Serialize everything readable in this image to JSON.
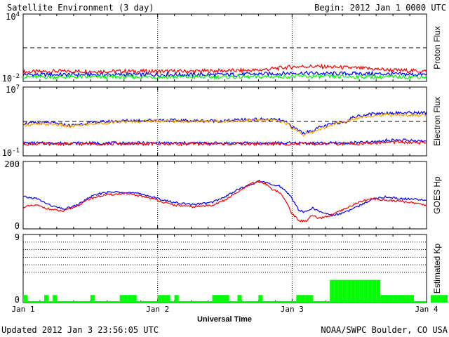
{
  "header": {
    "title": "Satellite Environment (3 day)",
    "begin": "Begin:  2012 Jan 1 0000 UTC"
  },
  "footer": {
    "updated": "Updated 2012 Jan  3 23:56:05 UTC",
    "source": "NOAA/SWPC Boulder, CO USA",
    "xlabel": "Universal Time"
  },
  "x_axis": {
    "range_days": [
      0,
      3
    ],
    "ticks": [
      {
        "value": 0,
        "label": "Jan 1"
      },
      {
        "value": 1,
        "label": "Jan 2"
      },
      {
        "value": 2,
        "label": "Jan 3"
      },
      {
        "value": 3,
        "label": "Jan 4"
      }
    ]
  },
  "colors": {
    "red": "#ff0000",
    "blue": "#0000ff",
    "green": "#00ff00",
    "orange": "#ffa500",
    "axis": "#000000"
  },
  "chart_data": [
    {
      "type": "line",
      "id": "proton",
      "ylabel": "Proton Flux",
      "yscale": "log",
      "ylim": [
        0.01,
        10000
      ],
      "tick_labels": [
        {
          "base": "10",
          "exp": "4",
          "value": 10000
        },
        {
          "base": "10",
          "exp": "-2",
          "value": 0.01
        }
      ],
      "threshold": 10,
      "x": [
        0,
        0.25,
        0.5,
        0.75,
        1.0,
        1.25,
        1.5,
        1.75,
        1.9,
        2.0,
        2.1,
        2.25,
        2.5,
        2.75,
        3.0
      ],
      "series": [
        {
          "color": "red",
          "values": [
            0.07,
            0.08,
            0.08,
            0.08,
            0.08,
            0.08,
            0.09,
            0.1,
            0.15,
            0.2,
            0.22,
            0.2,
            0.15,
            0.1,
            0.08
          ]
        },
        {
          "color": "blue",
          "values": [
            0.04,
            0.04,
            0.04,
            0.04,
            0.04,
            0.04,
            0.04,
            0.045,
            0.05,
            0.055,
            0.055,
            0.05,
            0.05,
            0.045,
            0.04
          ]
        },
        {
          "color": "green",
          "values": [
            0.025,
            0.025,
            0.025,
            0.025,
            0.025,
            0.025,
            0.025,
            0.025,
            0.027,
            0.028,
            0.028,
            0.027,
            0.026,
            0.025,
            0.025
          ]
        }
      ]
    },
    {
      "type": "line",
      "id": "electron",
      "ylabel": "Electron Flux",
      "yscale": "log",
      "ylim": [
        0.1,
        10000000
      ],
      "tick_labels": [
        {
          "base": "10",
          "exp": "7",
          "value": 10000000
        },
        {
          "base": "10",
          "exp": "-1",
          "value": 0.1
        }
      ],
      "threshold": 1000,
      "x": [
        0,
        0.2,
        0.35,
        0.5,
        0.75,
        1.0,
        1.25,
        1.5,
        1.75,
        1.9,
        2.0,
        2.08,
        2.15,
        2.25,
        2.4,
        2.6,
        2.75,
        3.0
      ],
      "series": [
        {
          "color": "blue",
          "values": [
            600,
            700,
            300,
            700,
            1200,
            1500,
            1200,
            1200,
            1800,
            1500,
            200,
            40,
            80,
            300,
            1000,
            8000,
            10000,
            10000
          ]
        },
        {
          "color": "orange",
          "values": [
            400,
            500,
            250,
            500,
            900,
            1200,
            1000,
            1100,
            1400,
            1200,
            150,
            25,
            50,
            200,
            900,
            5000,
            6000,
            5000
          ]
        },
        {
          "color": "blue",
          "values": [
            3,
            3,
            3,
            3,
            3,
            3,
            3,
            3,
            3,
            3,
            3,
            3,
            3,
            3,
            3,
            4,
            7,
            5
          ]
        },
        {
          "color": "red",
          "values": [
            2.5,
            2.5,
            2.5,
            2.5,
            2.5,
            2.5,
            2.5,
            2.5,
            2.5,
            2.5,
            2.5,
            2.5,
            2.5,
            2.5,
            2.5,
            3,
            4,
            3
          ]
        }
      ]
    },
    {
      "type": "line",
      "id": "hp",
      "ylabel": "GOES Hp",
      "yscale": "linear",
      "ylim": [
        0,
        200
      ],
      "tick_labels": [
        {
          "base": "200",
          "exp": "",
          "value": 200
        },
        {
          "base": "0",
          "exp": "",
          "value": 0
        }
      ],
      "x": [
        0,
        0.1,
        0.2,
        0.3,
        0.4,
        0.5,
        0.6,
        0.75,
        0.9,
        1.0,
        1.1,
        1.25,
        1.4,
        1.5,
        1.6,
        1.7,
        1.75,
        1.8,
        1.85,
        1.9,
        1.95,
        2.0,
        2.05,
        2.1,
        2.15,
        2.2,
        2.3,
        2.4,
        2.5,
        2.6,
        2.7,
        2.8,
        2.9,
        3.0
      ],
      "series": [
        {
          "color": "blue",
          "values": [
            95,
            90,
            70,
            58,
            70,
            95,
            108,
            110,
            102,
            90,
            80,
            72,
            78,
            95,
            118,
            132,
            142,
            138,
            130,
            128,
            115,
            90,
            55,
            50,
            62,
            52,
            40,
            50,
            68,
            90,
            95,
            90,
            88,
            85
          ]
        },
        {
          "color": "red",
          "values": [
            65,
            70,
            58,
            52,
            68,
            90,
            100,
            105,
            96,
            85,
            72,
            65,
            70,
            85,
            110,
            135,
            140,
            135,
            118,
            110,
            85,
            45,
            25,
            22,
            40,
            30,
            42,
            60,
            80,
            90,
            85,
            82,
            78,
            70
          ]
        }
      ]
    },
    {
      "type": "bar",
      "id": "kp",
      "ylabel": "Estimated Kp",
      "ylim": [
        0,
        9
      ],
      "tick_labels": [
        {
          "base": "9",
          "exp": "",
          "value": 9
        },
        {
          "base": "0",
          "exp": "",
          "value": 0
        }
      ],
      "gridlines": [
        4,
        5,
        6,
        7,
        8
      ],
      "bar_width_days": 0.125,
      "values": [
        1,
        0,
        0,
        0,
        0,
        1,
        0,
        1,
        0,
        0,
        0,
        0,
        0,
        0,
        0,
        0,
        1,
        0,
        0,
        0,
        0,
        0,
        0,
        1,
        1,
        1,
        1,
        0,
        0,
        0,
        0,
        0,
        1,
        1,
        1,
        0,
        1,
        0,
        0,
        0,
        0,
        0,
        0,
        0,
        0,
        1,
        1,
        1,
        1,
        0,
        0,
        1,
        0,
        0,
        0,
        0,
        1,
        0,
        0,
        0,
        0,
        0,
        0,
        0,
        0,
        1,
        1,
        1,
        1,
        0,
        0,
        0,
        0,
        3,
        3,
        3,
        3,
        3,
        3,
        3,
        3,
        3,
        3,
        3,
        3,
        1,
        1,
        1,
        1,
        1,
        1,
        1,
        1,
        0,
        0,
        0,
        0,
        1,
        1,
        1,
        1,
        0,
        0,
        0,
        0
      ]
    }
  ]
}
